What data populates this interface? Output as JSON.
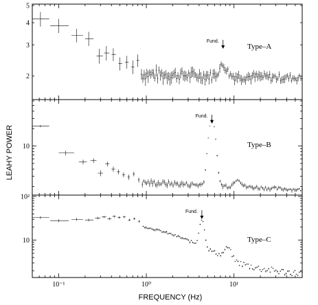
{
  "axis_labels": {
    "x": "FREQUENCY (Hz)",
    "y": "LEAHY POWER"
  },
  "chart_data": [
    {
      "type": "scatter",
      "panel_label": "Type–A",
      "annotation": {
        "text": "Fund.",
        "freq": 7.5
      },
      "xscale": "log",
      "yscale": "log",
      "xlim": [
        0.05,
        60
      ],
      "ylim": [
        1.5,
        5
      ],
      "yticks": [
        {
          "v": 2,
          "label": "2"
        },
        {
          "v": 3,
          "label": "3"
        },
        {
          "v": 4,
          "label": "4"
        },
        {
          "v": 5,
          "label": "5"
        }
      ],
      "points": [
        {
          "f": 0.062,
          "y": 4.2,
          "fl": 0.05,
          "fh": 0.078,
          "dy": 0.4
        },
        {
          "f": 0.1,
          "y": 3.85,
          "fl": 0.08,
          "fh": 0.13,
          "dy": 0.35
        },
        {
          "f": 0.16,
          "y": 3.4,
          "fl": 0.14,
          "fh": 0.19,
          "dy": 0.3
        },
        {
          "f": 0.22,
          "y": 3.25,
          "fl": 0.2,
          "fh": 0.25,
          "dy": 0.3
        },
        {
          "f": 0.29,
          "y": 2.6,
          "fl": 0.27,
          "fh": 0.32,
          "dy": 0.25
        },
        {
          "f": 0.35,
          "y": 2.7,
          "fl": 0.33,
          "fh": 0.38,
          "dy": 0.25
        },
        {
          "f": 0.42,
          "y": 2.65,
          "fl": 0.4,
          "fh": 0.45,
          "dy": 0.22
        },
        {
          "f": 0.5,
          "y": 2.35,
          "fl": 0.48,
          "fh": 0.53,
          "dy": 0.2
        },
        {
          "f": 0.6,
          "y": 2.4,
          "fl": 0.57,
          "fh": 0.63,
          "dy": 0.2
        },
        {
          "f": 0.7,
          "y": 2.25,
          "fl": 0.67,
          "fh": 0.73,
          "dy": 0.2
        },
        {
          "f": 0.8,
          "y": 2.45,
          "fl": 0.77,
          "fh": 0.83,
          "dy": 0.2
        }
      ],
      "series": [
        {
          "name": "",
          "fmin": 0.88,
          "fmax": 60,
          "n": 120,
          "base": 2.05,
          "peaks": [
            {
              "c": 7.5,
              "a": 0.3,
              "w": 0.06
            }
          ],
          "noise": 0.14,
          "err": 0.15,
          "errfade": 0.55,
          "ytail": 1.95
        }
      ]
    },
    {
      "type": "scatter",
      "panel_label": "Type–B",
      "annotation": {
        "text": "Fund.",
        "freq": 5.6
      },
      "xscale": "log",
      "yscale": "log",
      "xlim": [
        0.05,
        60
      ],
      "ylim": [
        1.5,
        60
      ],
      "yticks": [
        {
          "v": 10,
          "label": "10"
        }
      ],
      "points": [
        {
          "f": 0.062,
          "y": 22,
          "fl": 0.05,
          "fh": 0.078,
          "dy": 1.0
        },
        {
          "f": 0.12,
          "y": 7.6,
          "fl": 0.1,
          "fh": 0.15,
          "dy": 0.7
        },
        {
          "f": 0.19,
          "y": 5.3,
          "fl": 0.17,
          "fh": 0.21,
          "dy": 0.5
        },
        {
          "f": 0.25,
          "y": 5.6,
          "fl": 0.23,
          "fh": 0.27,
          "dy": 0.5
        },
        {
          "f": 0.3,
          "y": 3.4,
          "fl": 0.28,
          "fh": 0.32,
          "dy": 0.4
        },
        {
          "f": 0.36,
          "y": 4.9,
          "fl": 0.34,
          "fh": 0.38,
          "dy": 0.45
        },
        {
          "f": 0.42,
          "y": 4.0,
          "fl": 0.4,
          "fh": 0.44,
          "dy": 0.4
        },
        {
          "f": 0.48,
          "y": 3.6,
          "fl": 0.46,
          "fh": 0.5,
          "dy": 0.35
        },
        {
          "f": 0.55,
          "y": 3.2,
          "fl": 0.53,
          "fh": 0.57,
          "dy": 0.3
        },
        {
          "f": 0.63,
          "y": 2.9,
          "fl": 0.61,
          "fh": 0.65,
          "dy": 0.3
        },
        {
          "f": 0.72,
          "y": 3.3,
          "fl": 0.7,
          "fh": 0.74,
          "dy": 0.3
        },
        {
          "f": 0.82,
          "y": 2.6,
          "fl": 0.8,
          "fh": 0.84,
          "dy": 0.25
        }
      ],
      "series": [
        {
          "name": "",
          "fmin": 0.9,
          "fmax": 60,
          "n": 110,
          "base": 2.35,
          "peaks": [
            {
              "c": 5.6,
              "a": 27,
              "w": 0.045
            },
            {
              "c": 11,
              "a": 0.7,
              "w": 0.05
            }
          ],
          "noise": 0.22,
          "err": 0.25,
          "errfade": 0.4,
          "ytail": 1.75
        }
      ]
    },
    {
      "type": "scatter",
      "panel_label": "Type–C",
      "annotation": {
        "text": "Fund.",
        "freq": 4.3
      },
      "xscale": "log",
      "yscale": "log",
      "xlim": [
        0.05,
        60
      ],
      "ylim": [
        1.5,
        100
      ],
      "yticks": [
        {
          "v": 10,
          "label": "10"
        },
        {
          "v": 100,
          "label": "10²"
        }
      ],
      "points": [
        {
          "f": 0.062,
          "y": 33,
          "fl": 0.05,
          "fh": 0.078,
          "dy": 2.5
        },
        {
          "f": 0.1,
          "y": 28,
          "fl": 0.08,
          "fh": 0.13,
          "dy": 2.2
        },
        {
          "f": 0.16,
          "y": 30,
          "fl": 0.14,
          "fh": 0.19,
          "dy": 2.2
        },
        {
          "f": 0.22,
          "y": 29,
          "fl": 0.2,
          "fh": 0.25,
          "dy": 2.0
        },
        {
          "f": 0.28,
          "y": 32,
          "fl": 0.26,
          "fh": 0.3,
          "dy": 2.0
        },
        {
          "f": 0.33,
          "y": 34,
          "fl": 0.31,
          "fh": 0.35,
          "dy": 2.0
        },
        {
          "f": 0.38,
          "y": 31,
          "fl": 0.36,
          "fh": 0.4,
          "dy": 2.0
        },
        {
          "f": 0.43,
          "y": 35,
          "fl": 0.41,
          "fh": 0.45,
          "dy": 2.0
        },
        {
          "f": 0.49,
          "y": 33,
          "fl": 0.47,
          "fh": 0.51,
          "dy": 2.0
        },
        {
          "f": 0.56,
          "y": 34,
          "fl": 0.54,
          "fh": 0.58,
          "dy": 2.0
        },
        {
          "f": 0.64,
          "y": 29,
          "fl": 0.62,
          "fh": 0.66,
          "dy": 1.8
        },
        {
          "f": 0.73,
          "y": 31,
          "fl": 0.71,
          "fh": 0.75,
          "dy": 1.8
        },
        {
          "f": 0.83,
          "y": 27,
          "fl": 0.81,
          "fh": 0.85,
          "dy": 1.8
        }
      ],
      "series": [
        {
          "name": "",
          "fmin": 0.92,
          "fmax": 60,
          "n": 110,
          "base": 0,
          "peaks": [
            {
              "c": 4.3,
              "a": 22,
              "w": 0.035
            },
            {
              "c": 8.5,
              "a": 3.0,
              "w": 0.05
            }
          ],
          "noise": 0.8,
          "err": 1.2,
          "errfade": 0.35,
          "ytail": 1.6,
          "powerlaw": {
            "a": 23,
            "k": 1.0,
            "knee": 1.0,
            "knee2": 6.5,
            "k2": 2.2
          }
        }
      ]
    }
  ],
  "xticks": [
    {
      "v": 0.1,
      "label": "10⁻¹"
    },
    {
      "v": 1,
      "label": "10⁰"
    },
    {
      "v": 10,
      "label": "10¹"
    }
  ]
}
